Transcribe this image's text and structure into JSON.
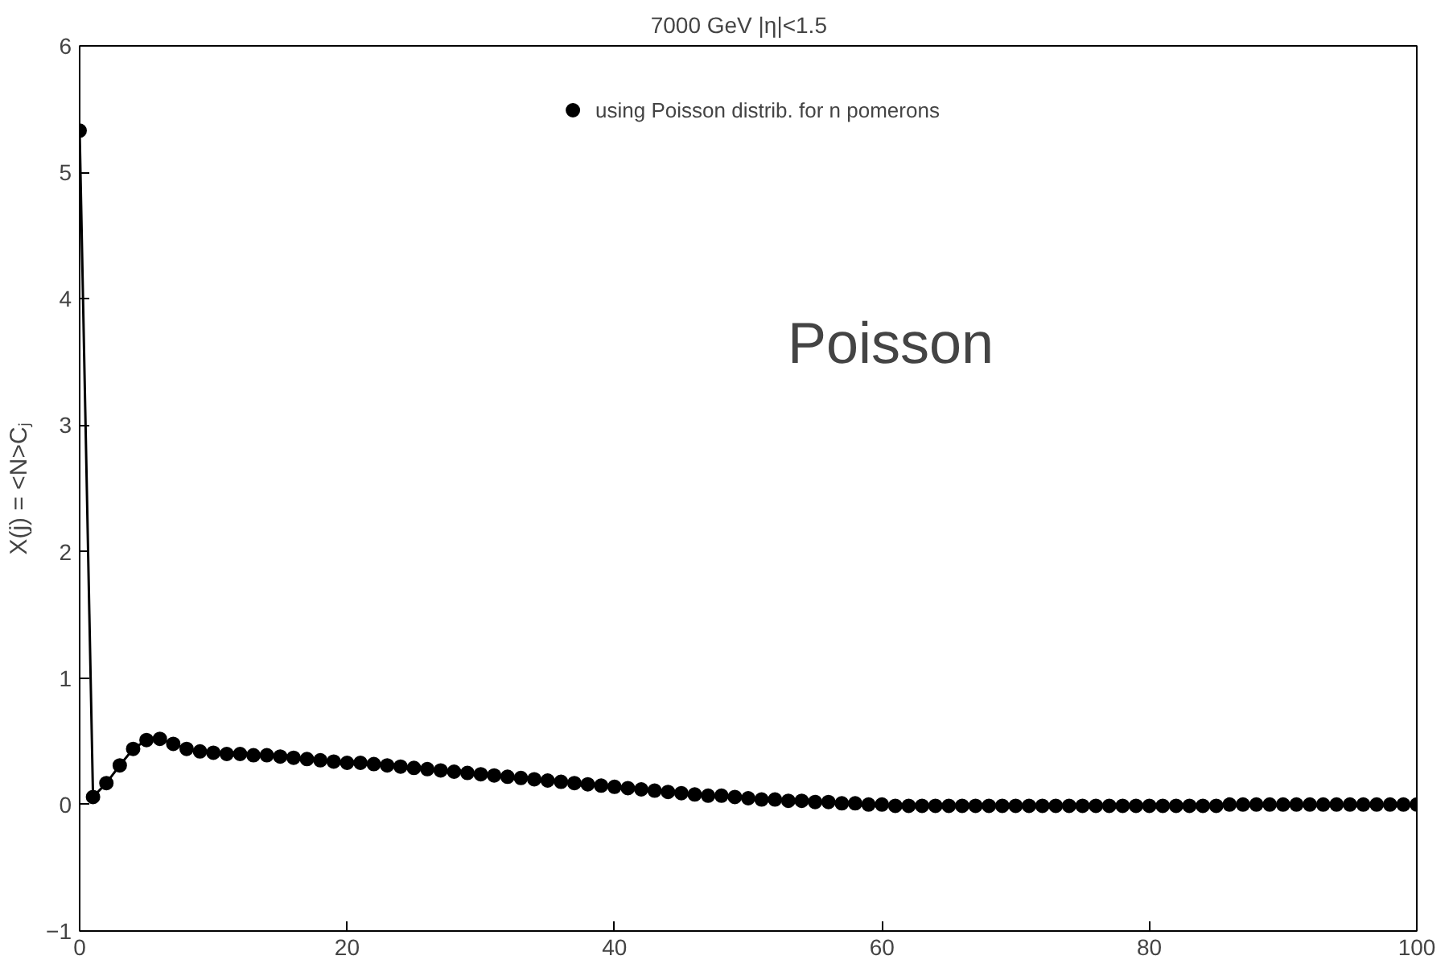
{
  "chart_data": {
    "type": "line",
    "title": "7000 GeV    |η|<1.5",
    "ylabel": "X(j) = <N>Cⱼ",
    "x": [
      0,
      1,
      2,
      3,
      4,
      5,
      6,
      7,
      8,
      9,
      10,
      11,
      12,
      13,
      14,
      15,
      16,
      17,
      18,
      19,
      20,
      21,
      22,
      23,
      24,
      25,
      26,
      27,
      28,
      29,
      30,
      31,
      32,
      33,
      34,
      35,
      36,
      37,
      38,
      39,
      40,
      41,
      42,
      43,
      44,
      45,
      46,
      47,
      48,
      49,
      50,
      51,
      52,
      53,
      54,
      55,
      56,
      57,
      58,
      59,
      60,
      61,
      62,
      63,
      64,
      65,
      66,
      67,
      68,
      69,
      70,
      71,
      72,
      73,
      74,
      75,
      76,
      77,
      78,
      79,
      80,
      81,
      82,
      83,
      84,
      85,
      86,
      87,
      88,
      89,
      90,
      91,
      92,
      93,
      94,
      95,
      96,
      97,
      98,
      99,
      100
    ],
    "series": [
      {
        "name": "using Poisson distrib. for n pomerons",
        "color": "#000000",
        "values": [
          5.33,
          0.06,
          0.17,
          0.31,
          0.44,
          0.51,
          0.52,
          0.48,
          0.44,
          0.42,
          0.41,
          0.4,
          0.4,
          0.39,
          0.39,
          0.38,
          0.37,
          0.36,
          0.35,
          0.34,
          0.33,
          0.33,
          0.32,
          0.31,
          0.3,
          0.29,
          0.28,
          0.27,
          0.26,
          0.25,
          0.24,
          0.23,
          0.22,
          0.21,
          0.2,
          0.19,
          0.18,
          0.17,
          0.16,
          0.15,
          0.14,
          0.13,
          0.12,
          0.11,
          0.1,
          0.09,
          0.08,
          0.07,
          0.07,
          0.06,
          0.05,
          0.04,
          0.04,
          0.03,
          0.03,
          0.02,
          0.02,
          0.01,
          0.01,
          0.0,
          0.0,
          -0.01,
          -0.01,
          -0.01,
          -0.01,
          -0.01,
          -0.01,
          -0.01,
          -0.01,
          -0.01,
          -0.01,
          -0.01,
          -0.01,
          -0.01,
          -0.01,
          -0.01,
          -0.01,
          -0.01,
          -0.01,
          -0.01,
          -0.01,
          -0.01,
          -0.01,
          -0.01,
          -0.01,
          -0.01,
          0.0,
          0.0,
          0.0,
          0.0,
          0.0,
          0.0,
          0.0,
          0.0,
          0.0,
          0.0,
          0.0,
          0.0,
          0.0,
          0.0,
          0.0
        ]
      }
    ],
    "annotations": [
      "Poisson"
    ],
    "xlim": [
      0,
      100
    ],
    "ylim": [
      -1,
      6
    ],
    "xticks": [
      0,
      20,
      40,
      60,
      80,
      100
    ],
    "yticks": [
      -1,
      0,
      1,
      2,
      3,
      4,
      5,
      6
    ],
    "grid": false,
    "legend": "top",
    "marker": "circle",
    "line_style": "solid"
  }
}
